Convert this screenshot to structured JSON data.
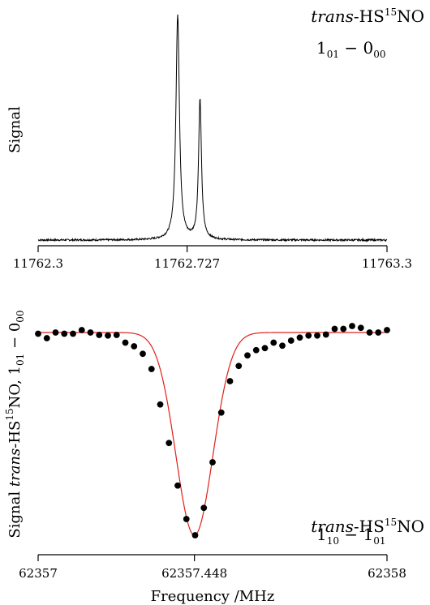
{
  "chart_data": [
    {
      "type": "line",
      "ylabel": "Signal",
      "xlim": [
        11762.3,
        11763.3
      ],
      "x_ticks": [
        "11762.3",
        "11762.727",
        "11763.3"
      ],
      "x_tick_values": [
        11762.3,
        11762.727,
        11763.3
      ],
      "grid": false,
      "annotation": {
        "species_italic": "trans",
        "species_prefix": "-HS",
        "isotope": "15",
        "species_suffix": "NO",
        "transition": {
          "upper_main": "1",
          "upper_sub": "01",
          "sep": " − ",
          "lower_main": "0",
          "lower_sub": "00"
        },
        "placement": "top-right"
      },
      "series": [
        {
          "components": [
            {
              "center": 11762.7,
              "amplitude": 1.0,
              "hwhm": 0.006
            },
            {
              "center": 11762.764,
              "amplitude": 0.62,
              "hwhm": 0.005
            }
          ],
          "baseline": 0.0
        }
      ],
      "color": "#000000"
    },
    {
      "type": "scatter",
      "xlabel": "Frequency /MHz",
      "ylabel": {
        "prefix": "Signal ",
        "italic": "trans",
        "mid": "-HS",
        "isotope": "15",
        "suffix": "NO, ",
        "t_upper_main": "1",
        "t_upper_sub": "01",
        "t_sep": " − ",
        "t_lower_main": "0",
        "t_lower_sub": "00"
      },
      "xlim": [
        62357,
        62358
      ],
      "x_ticks": [
        "62357",
        "62357.448",
        "62358"
      ],
      "x_tick_values": [
        62357,
        62357.448,
        62358
      ],
      "grid": false,
      "annotation": {
        "species_italic": "trans",
        "species_prefix": "-HS",
        "isotope": "15",
        "species_suffix": "NO",
        "transition": {
          "upper_main": "1",
          "upper_sub": "10",
          "sep": " − ",
          "lower_main": "1",
          "lower_sub": "01"
        },
        "placement": "bottom-right"
      },
      "points": {
        "x": [
          62357.0,
          62357.025,
          62357.05,
          62357.075,
          62357.1,
          62357.125,
          62357.15,
          62357.175,
          62357.2,
          62357.225,
          62357.25,
          62357.275,
          62357.3,
          62357.325,
          62357.35,
          62357.375,
          62357.4,
          62357.425,
          62357.45,
          62357.475,
          62357.5,
          62357.525,
          62357.55,
          62357.575,
          62357.6,
          62357.625,
          62357.65,
          62357.675,
          62357.7,
          62357.725,
          62357.75,
          62357.775,
          62357.8,
          62357.825,
          62357.85,
          62357.875,
          62357.9,
          62357.925,
          62357.95,
          62357.975,
          62358.0
        ],
        "y": [
          0.006,
          0.028,
          0.0,
          0.006,
          0.006,
          -0.012,
          0.0,
          0.012,
          0.015,
          0.012,
          0.05,
          0.068,
          0.105,
          0.18,
          0.355,
          0.545,
          0.755,
          0.92,
          1.0,
          0.865,
          0.64,
          0.395,
          0.24,
          0.165,
          0.113,
          0.087,
          0.077,
          0.05,
          0.065,
          0.04,
          0.025,
          0.015,
          0.015,
          0.01,
          -0.018,
          -0.018,
          -0.032,
          -0.023,
          0.0,
          0.0,
          -0.012
        ]
      },
      "fit": {
        "center": 62357.448,
        "width": 0.075,
        "amplitude": 1.0,
        "color": "#e0201a",
        "shape": "gaussian"
      },
      "marker_color": "#000000"
    }
  ]
}
